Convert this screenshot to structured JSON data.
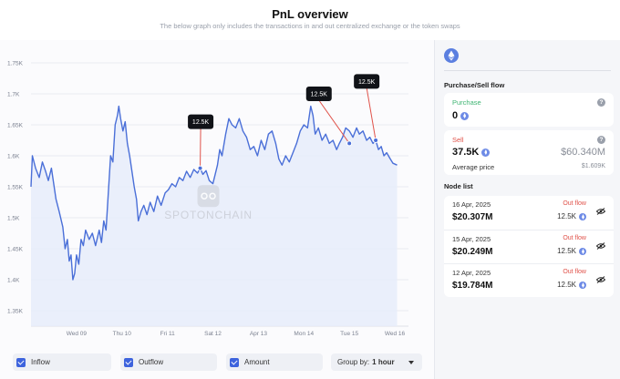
{
  "header": {
    "title": "PnL overview",
    "subtitle": "The below graph only includes the transactions in and out centralized exchange or the token swaps"
  },
  "chart_data": {
    "type": "line",
    "title": "",
    "xlabel": "",
    "ylabel": "",
    "ylim": [
      1.325,
      1.775
    ],
    "y_ticks": [
      "1.35K",
      "1.4K",
      "1.45K",
      "1.5K",
      "1.55K",
      "1.6K",
      "1.65K",
      "1.7K",
      "1.75K"
    ],
    "y_tick_values": [
      1.35,
      1.4,
      1.45,
      1.5,
      1.55,
      1.6,
      1.65,
      1.7,
      1.75
    ],
    "x_ticks": [
      "Wed 09",
      "Thu 10",
      "Fri 11",
      "Sat 12",
      "Apr 13",
      "Mon 14",
      "Tue 15",
      "Wed 16"
    ],
    "x_tick_values": [
      1.0,
      2.0,
      3.0,
      4.0,
      5.0,
      6.0,
      7.0,
      8.0
    ],
    "xlim": [
      0.0,
      8.3
    ],
    "grid": true,
    "line_color": "#4a6fd8",
    "fill_color": "#e6ecfa",
    "series": [
      {
        "points": [
          [
            0.0,
            1.55
          ],
          [
            0.03,
            1.6
          ],
          [
            0.1,
            1.58
          ],
          [
            0.18,
            1.565
          ],
          [
            0.25,
            1.59
          ],
          [
            0.32,
            1.575
          ],
          [
            0.38,
            1.56
          ],
          [
            0.45,
            1.58
          ],
          [
            0.5,
            1.555
          ],
          [
            0.55,
            1.53
          ],
          [
            0.62,
            1.51
          ],
          [
            0.7,
            1.485
          ],
          [
            0.75,
            1.45
          ],
          [
            0.8,
            1.465
          ],
          [
            0.84,
            1.43
          ],
          [
            0.88,
            1.44
          ],
          [
            0.92,
            1.4
          ],
          [
            0.96,
            1.41
          ],
          [
            1.0,
            1.44
          ],
          [
            1.05,
            1.425
          ],
          [
            1.1,
            1.465
          ],
          [
            1.15,
            1.455
          ],
          [
            1.2,
            1.48
          ],
          [
            1.28,
            1.465
          ],
          [
            1.35,
            1.475
          ],
          [
            1.42,
            1.455
          ],
          [
            1.5,
            1.48
          ],
          [
            1.55,
            1.46
          ],
          [
            1.6,
            1.495
          ],
          [
            1.65,
            1.48
          ],
          [
            1.7,
            1.54
          ],
          [
            1.75,
            1.6
          ],
          [
            1.8,
            1.59
          ],
          [
            1.85,
            1.65
          ],
          [
            1.9,
            1.665
          ],
          [
            1.93,
            1.68
          ],
          [
            1.97,
            1.66
          ],
          [
            2.02,
            1.64
          ],
          [
            2.07,
            1.655
          ],
          [
            2.12,
            1.62
          ],
          [
            2.17,
            1.6
          ],
          [
            2.22,
            1.575
          ],
          [
            2.27,
            1.55
          ],
          [
            2.32,
            1.53
          ],
          [
            2.36,
            1.495
          ],
          [
            2.42,
            1.51
          ],
          [
            2.48,
            1.52
          ],
          [
            2.55,
            1.505
          ],
          [
            2.62,
            1.525
          ],
          [
            2.7,
            1.51
          ],
          [
            2.78,
            1.535
          ],
          [
            2.86,
            1.52
          ],
          [
            2.95,
            1.54
          ],
          [
            3.02,
            1.545
          ],
          [
            3.1,
            1.555
          ],
          [
            3.18,
            1.55
          ],
          [
            3.26,
            1.565
          ],
          [
            3.34,
            1.56
          ],
          [
            3.42,
            1.575
          ],
          [
            3.5,
            1.565
          ],
          [
            3.58,
            1.578
          ],
          [
            3.66,
            1.572
          ],
          [
            3.72,
            1.58
          ],
          [
            3.78,
            1.57
          ],
          [
            3.85,
            1.576
          ],
          [
            3.92,
            1.56
          ],
          [
            4.0,
            1.555
          ],
          [
            4.05,
            1.57
          ],
          [
            4.1,
            1.585
          ],
          [
            4.15,
            1.61
          ],
          [
            4.2,
            1.6
          ],
          [
            4.28,
            1.635
          ],
          [
            4.35,
            1.66
          ],
          [
            4.42,
            1.65
          ],
          [
            4.5,
            1.645
          ],
          [
            4.58,
            1.66
          ],
          [
            4.66,
            1.64
          ],
          [
            4.74,
            1.63
          ],
          [
            4.82,
            1.61
          ],
          [
            4.9,
            1.615
          ],
          [
            4.98,
            1.6
          ],
          [
            5.06,
            1.625
          ],
          [
            5.14,
            1.61
          ],
          [
            5.22,
            1.635
          ],
          [
            5.3,
            1.64
          ],
          [
            5.38,
            1.62
          ],
          [
            5.45,
            1.595
          ],
          [
            5.52,
            1.585
          ],
          [
            5.6,
            1.6
          ],
          [
            5.68,
            1.59
          ],
          [
            5.76,
            1.605
          ],
          [
            5.84,
            1.62
          ],
          [
            5.92,
            1.64
          ],
          [
            6.0,
            1.65
          ],
          [
            6.08,
            1.645
          ],
          [
            6.15,
            1.68
          ],
          [
            6.2,
            1.665
          ],
          [
            6.25,
            1.635
          ],
          [
            6.32,
            1.645
          ],
          [
            6.4,
            1.625
          ],
          [
            6.48,
            1.635
          ],
          [
            6.56,
            1.62
          ],
          [
            6.64,
            1.625
          ],
          [
            6.72,
            1.61
          ],
          [
            6.78,
            1.62
          ],
          [
            6.85,
            1.63
          ],
          [
            6.92,
            1.645
          ],
          [
            7.0,
            1.64
          ],
          [
            7.08,
            1.63
          ],
          [
            7.16,
            1.645
          ],
          [
            7.22,
            1.635
          ],
          [
            7.3,
            1.64
          ],
          [
            7.38,
            1.625
          ],
          [
            7.45,
            1.63
          ],
          [
            7.52,
            1.62
          ],
          [
            7.58,
            1.625
          ],
          [
            7.64,
            1.61
          ],
          [
            7.7,
            1.615
          ],
          [
            7.76,
            1.6
          ],
          [
            7.82,
            1.605
          ],
          [
            7.9,
            1.595
          ],
          [
            7.96,
            1.588
          ],
          [
            8.05,
            1.585
          ]
        ]
      }
    ],
    "annotations": [
      {
        "label": "12.5K",
        "x": 3.72,
        "y": 1.58,
        "box_x": 3.45,
        "box_y": 1.655
      },
      {
        "label": "12.5K",
        "x": 7.0,
        "y": 1.62,
        "box_x": 6.05,
        "box_y": 1.7
      },
      {
        "label": "12.5K",
        "x": 7.58,
        "y": 1.625,
        "box_x": 7.1,
        "box_y": 1.72
      }
    ],
    "watermark": "SPOTONCHAIN"
  },
  "controls": {
    "inflow_label": "Inflow",
    "outflow_label": "Outflow",
    "amount_label": "Amount",
    "groupby_label": "Group by:",
    "groupby_value": "1 hour"
  },
  "sidebar": {
    "flow_title": "Purchase/Sell flow",
    "purchase": {
      "label": "Purchase",
      "value": "0"
    },
    "sell": {
      "label": "Sell",
      "value": "37.5K",
      "usd": "$60.340M",
      "avg_label": "Average price",
      "avg_value": "$1.609K"
    },
    "node_title": "Node list",
    "nodes": [
      {
        "date": "16 Apr, 2025",
        "usd": "$20.307M",
        "flow": "Out flow",
        "amount": "12.5K"
      },
      {
        "date": "15 Apr, 2025",
        "usd": "$20.249M",
        "flow": "Out flow",
        "amount": "12.5K"
      },
      {
        "date": "12 Apr, 2025",
        "usd": "$19.784M",
        "flow": "Out flow",
        "amount": "12.5K"
      }
    ]
  },
  "colors": {
    "accent": "#3d63dd",
    "sell_red": "#e0524a",
    "purchase_green": "#3fb573"
  }
}
